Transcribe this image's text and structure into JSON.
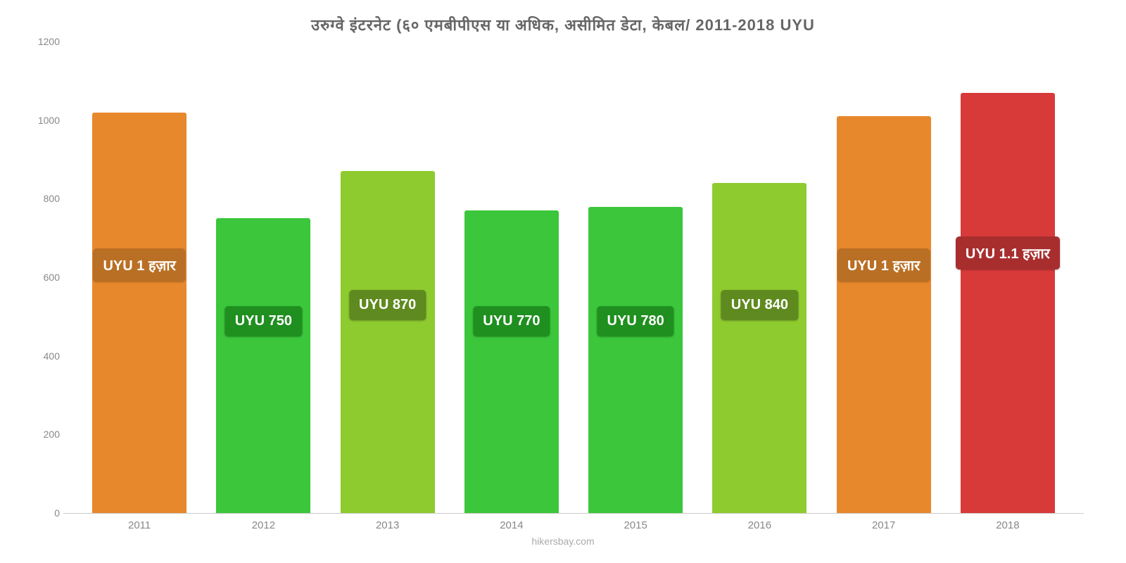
{
  "chart": {
    "type": "bar",
    "title": "उरुग्वे   इंटरनेट   (६०   एमबीपीएस   या   अधिक, असीमित   डेटा, केबल/ 2011-2018 UYU",
    "title_fontsize": 22,
    "title_color": "#666666",
    "source": "hikersbay.com",
    "source_color": "#aaaaaa",
    "background_color": "#ffffff",
    "ylim": [
      0,
      1200
    ],
    "ytick_step": 200,
    "yticks": [
      0,
      200,
      400,
      600,
      800,
      1000,
      1200
    ],
    "ytick_fontsize": 14,
    "ytick_color": "#888888",
    "xlabel_fontsize": 15,
    "xlabel_color": "#888888",
    "bar_width_pct": 76,
    "badge_fontsize": 20,
    "badge_text_color": "#ffffff",
    "categories": [
      "2011",
      "2012",
      "2013",
      "2014",
      "2015",
      "2016",
      "2017",
      "2018"
    ],
    "values": [
      1020,
      750,
      870,
      770,
      780,
      840,
      1010,
      1070
    ],
    "value_labels": [
      "UYU 1 हज़ार",
      "UYU 750",
      "UYU 870",
      "UYU 770",
      "UYU 780",
      "UYU 840",
      "UYU 1 हज़ार",
      "UYU 1.1 हज़ार"
    ],
    "bar_colors": [
      "#e8882d",
      "#3bc63b",
      "#8ecb2f",
      "#3bc63b",
      "#3bc63b",
      "#8ecb2f",
      "#e8882d",
      "#d83a3a"
    ],
    "badge_bg_colors": [
      "#b96f24",
      "#1f8f1f",
      "#5f8a20",
      "#1f8f1f",
      "#1f8f1f",
      "#5f8a20",
      "#b96f24",
      "#a82e2e"
    ],
    "badge_y_values": [
      590,
      450,
      490,
      450,
      450,
      490,
      590,
      620
    ]
  }
}
